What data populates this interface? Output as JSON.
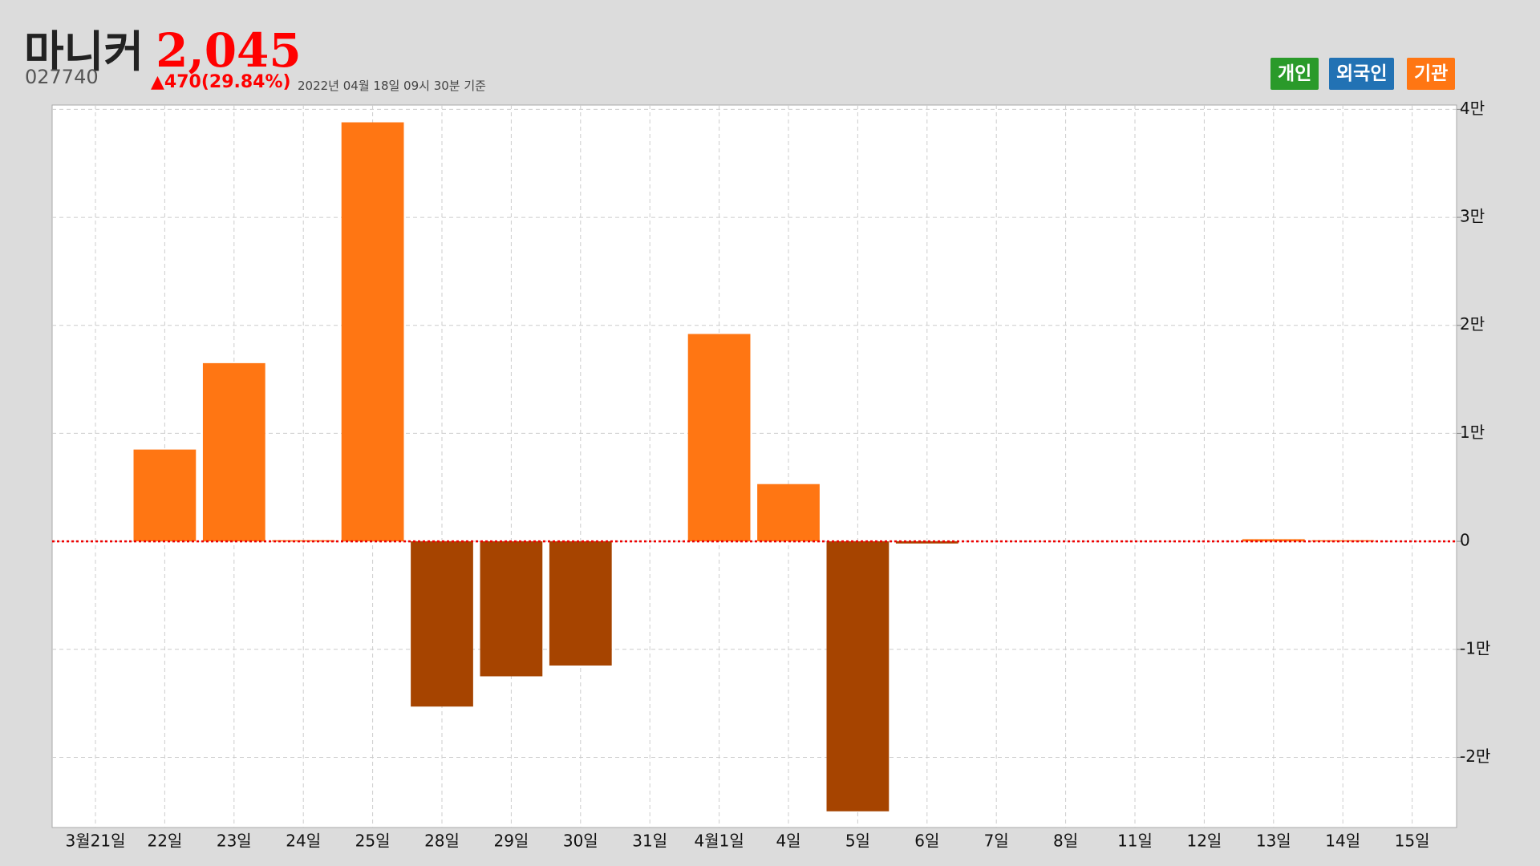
{
  "header": {
    "title": "마니커",
    "price": "2,045",
    "code": "027740",
    "change": "▲470(29.84%)",
    "timestamp": "2022년 04월 18일 09시 30분 기준"
  },
  "legend_buttons": [
    "개인",
    "외국인",
    "기관"
  ],
  "chart_data": {
    "type": "bar",
    "categories": [
      "3월21일",
      "22일",
      "23일",
      "24일",
      "25일",
      "28일",
      "29일",
      "30일",
      "31일",
      "4월1일",
      "4일",
      "5일",
      "6일",
      "7일",
      "8일",
      "11일",
      "12일",
      "13일",
      "14일",
      "15일"
    ],
    "values": [
      0,
      8500,
      16500,
      100,
      38800,
      -15300,
      -12500,
      -11500,
      0,
      19200,
      5300,
      -25000,
      -200,
      0,
      0,
      0,
      0,
      200,
      100,
      0
    ],
    "color": "#ff7613",
    "negative_color": "#a64400",
    "ylim": [
      -26500,
      40400
    ],
    "yticks": [
      {
        "value": -20000,
        "label": "-2만"
      },
      {
        "value": -10000,
        "label": "-1만"
      },
      0,
      {
        "value": 10000,
        "label": "1만"
      },
      {
        "value": 20000,
        "label": "2만"
      },
      {
        "value": 30000,
        "label": "3만"
      },
      {
        "value": 40000,
        "label": "4만"
      }
    ],
    "grid": true
  }
}
